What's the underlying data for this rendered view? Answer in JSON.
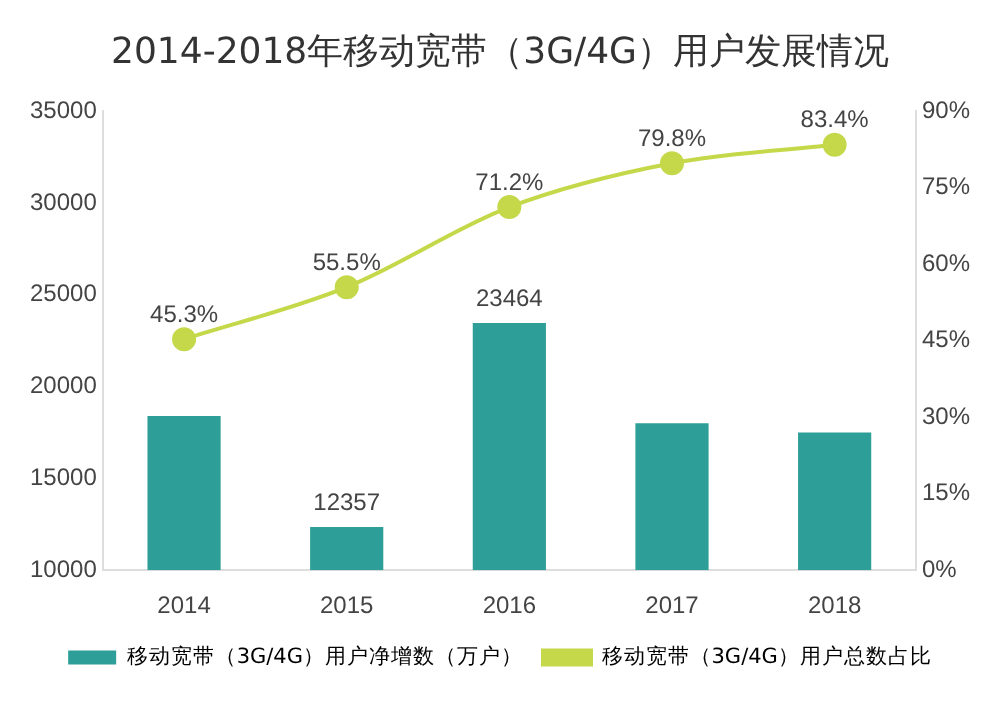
{
  "chart_data": {
    "type": "bar",
    "title": "2014-2018年移动宽带（3G/4G）用户发展情况",
    "categories": [
      "2014",
      "2015",
      "2016",
      "2017",
      "2018"
    ],
    "series": [
      {
        "name": "移动宽带（3G/4G）用户净增数（万户）",
        "color": "#2e9e98",
        "values": [
          18400,
          12357,
          23464,
          18000,
          17500
        ],
        "value_labels": [
          null,
          "12357",
          "23464",
          null,
          null
        ]
      },
      {
        "name": "移动宽带（3G/4G）用户总数占比",
        "type": "line",
        "axis": "y2",
        "color": "#c5d84a",
        "marker": "circle",
        "values": [
          45.3,
          55.5,
          71.2,
          79.8,
          83.4
        ],
        "value_labels": [
          "45.3%",
          "55.5%",
          "71.2%",
          "79.8%",
          "83.4%"
        ]
      }
    ],
    "ylim": [
      10000,
      35000
    ],
    "yticks": [
      10000,
      15000,
      20000,
      25000,
      30000,
      35000
    ],
    "y2lim": [
      0,
      90
    ],
    "y2ticks": [
      {
        "value": 0,
        "label": "0%"
      },
      {
        "value": 15,
        "label": "15%"
      },
      {
        "value": 30,
        "label": "30%"
      },
      {
        "value": 45,
        "label": "45%"
      },
      {
        "value": 60,
        "label": "60%"
      },
      {
        "value": 75,
        "label": "75%"
      },
      {
        "value": 90,
        "label": "90%"
      }
    ],
    "grid": false,
    "legend": "bottom"
  }
}
